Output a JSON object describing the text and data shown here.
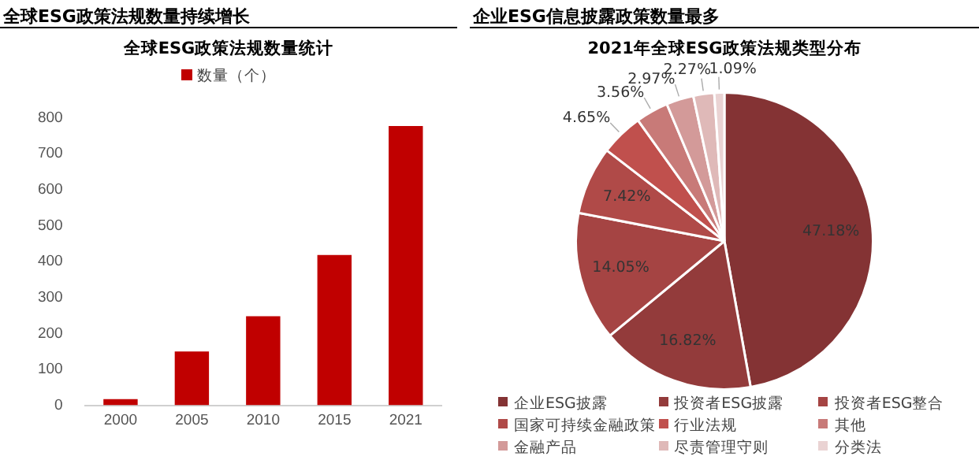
{
  "chart_data": [
    {
      "type": "bar",
      "title": "全球ESG政策法规数量统计",
      "annotations": [
        "全球ESG政策法规数量持续增长"
      ],
      "categories": [
        "2000",
        "2005",
        "2010",
        "2015",
        "2021"
      ],
      "series": [
        {
          "name": "数量（个）",
          "color": "#c00000",
          "values": [
            17,
            150,
            248,
            418,
            777
          ]
        }
      ],
      "ylim": [
        0,
        800
      ],
      "yticks": [
        0,
        100,
        200,
        300,
        400,
        500,
        600,
        700,
        800
      ],
      "grid": false,
      "legend": "top"
    },
    {
      "type": "pie",
      "title": "2021年全球ESG政策法规类型分布",
      "annotations": [
        "企业ESG信息披露政策数量最多"
      ],
      "categories": [
        "企业ESG披露",
        "投资者ESG披露",
        "投资者ESG整合",
        "国家可持续金融政策",
        "行业法规",
        "其他",
        "金融产品",
        "尽责管理守则",
        "分类法"
      ],
      "values": [
        47.18,
        16.82,
        14.05,
        7.42,
        4.65,
        3.56,
        2.97,
        2.27,
        1.09
      ],
      "colors": [
        "#843334",
        "#933b3b",
        "#a54443",
        "#b04a48",
        "#c0504d",
        "#c87a78",
        "#d39a99",
        "#dfb9b8",
        "#ead3d3"
      ],
      "value_labels": [
        "47.18%",
        "16.82%",
        "14.05%",
        "7.42%",
        "4.65%",
        "3.56%",
        "2.97%",
        "2.27%",
        "1.09%"
      ],
      "legend": "bottom"
    }
  ]
}
